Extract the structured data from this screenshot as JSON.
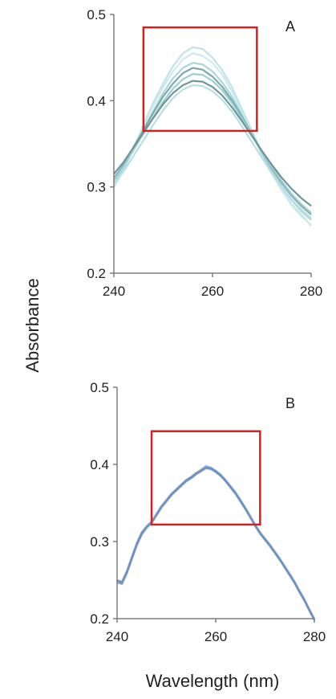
{
  "figure": {
    "ylabel": "Absorbance",
    "xlabel": "Wavelength (nm)"
  },
  "chart_data": [
    {
      "type": "line",
      "panel_label": "A",
      "xlim": [
        240,
        280
      ],
      "ylim": [
        0.2,
        0.5
      ],
      "x_ticks": [
        240,
        260,
        280
      ],
      "y_ticks": [
        "0.2",
        "0.3",
        "0.4",
        "0.5"
      ],
      "grid": false,
      "highlight_box": {
        "x": [
          246,
          269
        ],
        "y": [
          0.365,
          0.485
        ],
        "color": "#d62020"
      },
      "x": [
        240,
        242,
        244,
        246,
        248,
        250,
        252,
        254,
        256,
        258,
        260,
        262,
        264,
        266,
        268,
        270,
        272,
        274,
        276,
        278,
        280
      ],
      "series": [
        {
          "color": "#bfe3e6",
          "values": [
            0.3,
            0.32,
            0.345,
            0.372,
            0.398,
            0.42,
            0.44,
            0.455,
            0.462,
            0.46,
            0.45,
            0.435,
            0.415,
            0.39,
            0.365,
            0.34,
            0.318,
            0.298,
            0.28,
            0.268,
            0.255
          ]
        },
        {
          "color": "#cdeaec",
          "values": [
            0.302,
            0.322,
            0.347,
            0.37,
            0.394,
            0.416,
            0.434,
            0.448,
            0.455,
            0.452,
            0.444,
            0.43,
            0.41,
            0.386,
            0.362,
            0.338,
            0.316,
            0.296,
            0.279,
            0.266,
            0.256
          ]
        },
        {
          "color": "#a9d6da",
          "values": [
            0.305,
            0.323,
            0.345,
            0.366,
            0.388,
            0.409,
            0.426,
            0.438,
            0.444,
            0.442,
            0.434,
            0.421,
            0.404,
            0.383,
            0.361,
            0.339,
            0.319,
            0.301,
            0.285,
            0.272,
            0.262
          ]
        },
        {
          "color": "#7fa8ac",
          "values": [
            0.31,
            0.326,
            0.346,
            0.366,
            0.386,
            0.405,
            0.42,
            0.432,
            0.438,
            0.436,
            0.428,
            0.416,
            0.4,
            0.381,
            0.361,
            0.341,
            0.322,
            0.305,
            0.29,
            0.278,
            0.268
          ]
        },
        {
          "color": "#9ccfd4",
          "values": [
            0.308,
            0.324,
            0.343,
            0.362,
            0.381,
            0.399,
            0.414,
            0.425,
            0.431,
            0.43,
            0.423,
            0.412,
            0.397,
            0.379,
            0.36,
            0.341,
            0.323,
            0.307,
            0.292,
            0.28,
            0.27
          ]
        },
        {
          "color": "#6f9599",
          "values": [
            0.315,
            0.329,
            0.346,
            0.363,
            0.38,
            0.396,
            0.409,
            0.418,
            0.423,
            0.422,
            0.416,
            0.406,
            0.392,
            0.376,
            0.359,
            0.342,
            0.326,
            0.311,
            0.298,
            0.287,
            0.278
          ]
        },
        {
          "color": "#b7dfe2",
          "values": [
            0.304,
            0.318,
            0.336,
            0.354,
            0.372,
            0.389,
            0.403,
            0.413,
            0.418,
            0.417,
            0.411,
            0.401,
            0.387,
            0.37,
            0.352,
            0.334,
            0.316,
            0.3,
            0.286,
            0.274,
            0.264
          ]
        }
      ]
    },
    {
      "type": "line",
      "panel_label": "B",
      "xlim": [
        240,
        280
      ],
      "ylim": [
        0.2,
        0.5
      ],
      "x_ticks": [
        240,
        260,
        280
      ],
      "y_ticks": [
        "0.2",
        "0.3",
        "0.4",
        "0.5"
      ],
      "grid": false,
      "highlight_box": {
        "x": [
          247,
          269
        ],
        "y": [
          0.322,
          0.443
        ],
        "color": "#d62020"
      },
      "x": [
        240,
        241,
        242,
        243,
        244,
        245,
        246,
        247,
        248,
        249,
        250,
        251,
        252,
        253,
        254,
        255,
        256,
        257,
        258,
        259,
        260,
        261,
        262,
        263,
        264,
        265,
        266,
        267,
        268,
        269,
        270,
        271,
        272,
        273,
        274,
        275,
        276,
        277,
        278,
        279,
        280
      ],
      "series": [
        {
          "color": "#a9c2e2",
          "values": [
            0.25,
            0.248,
            0.262,
            0.28,
            0.298,
            0.312,
            0.32,
            0.326,
            0.336,
            0.346,
            0.354,
            0.362,
            0.368,
            0.374,
            0.38,
            0.384,
            0.389,
            0.393,
            0.398,
            0.396,
            0.392,
            0.387,
            0.38,
            0.372,
            0.364,
            0.354,
            0.344,
            0.333,
            0.322,
            0.312,
            0.304,
            0.296,
            0.287,
            0.278,
            0.268,
            0.258,
            0.248,
            0.236,
            0.225,
            0.212,
            0.2
          ]
        },
        {
          "color": "#8ba8d2",
          "values": [
            0.247,
            0.245,
            0.259,
            0.277,
            0.295,
            0.309,
            0.318,
            0.324,
            0.334,
            0.344,
            0.352,
            0.36,
            0.366,
            0.372,
            0.378,
            0.382,
            0.387,
            0.391,
            0.395,
            0.394,
            0.39,
            0.385,
            0.378,
            0.37,
            0.362,
            0.352,
            0.342,
            0.331,
            0.32,
            0.31,
            0.302,
            0.294,
            0.285,
            0.276,
            0.266,
            0.256,
            0.246,
            0.234,
            0.223,
            0.21,
            0.198
          ]
        },
        {
          "color": "#6f90c2",
          "values": [
            0.249,
            0.247,
            0.261,
            0.279,
            0.297,
            0.311,
            0.319,
            0.325,
            0.335,
            0.345,
            0.353,
            0.361,
            0.367,
            0.373,
            0.379,
            0.383,
            0.388,
            0.392,
            0.396,
            0.395,
            0.391,
            0.386,
            0.379,
            0.371,
            0.363,
            0.353,
            0.343,
            0.332,
            0.321,
            0.311,
            0.303,
            0.295,
            0.286,
            0.277,
            0.267,
            0.257,
            0.247,
            0.235,
            0.224,
            0.211,
            0.199
          ]
        }
      ]
    }
  ]
}
